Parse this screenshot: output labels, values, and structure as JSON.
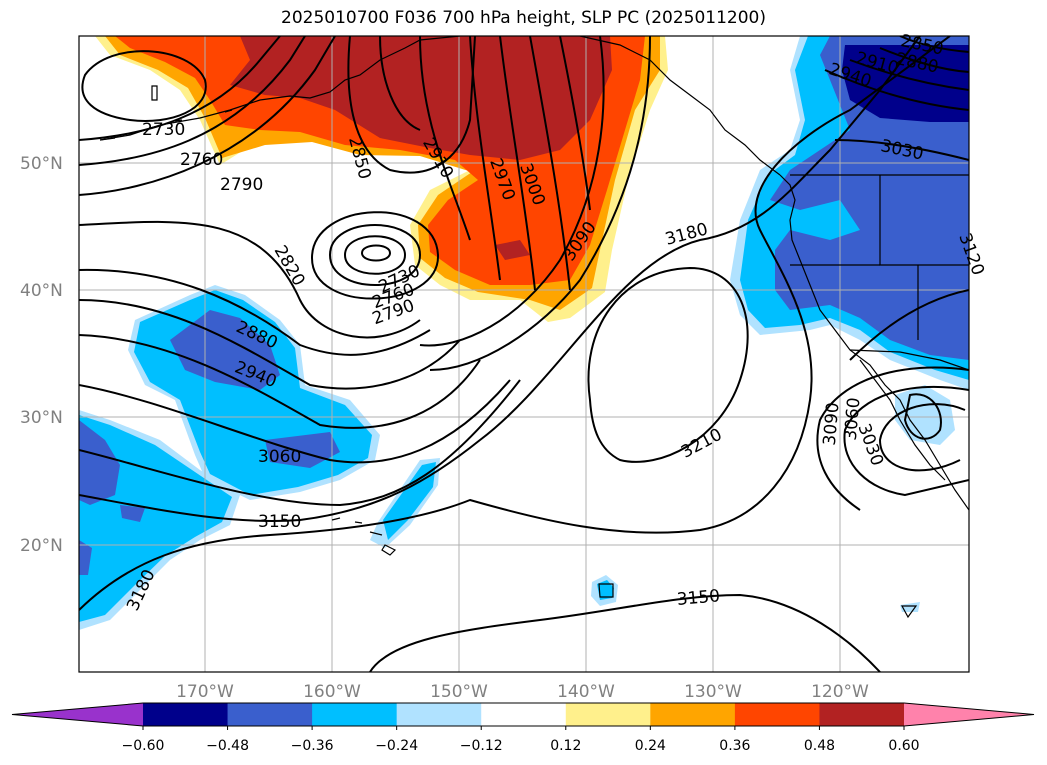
{
  "title": "2025010700 F036 700 hPa height, SLP PC (2025011200)",
  "lat_labels": [
    "50°N",
    "40°N",
    "30°N",
    "20°N"
  ],
  "lon_labels": [
    "170°W",
    "160°W",
    "150°W",
    "140°W",
    "130°W",
    "120°W"
  ],
  "colorbar": {
    "ticks": [
      "−0.60",
      "−0.48",
      "−0.36",
      "−0.24",
      "−0.12",
      "0.12",
      "0.24",
      "0.36",
      "0.48",
      "0.60"
    ],
    "colors": [
      "#9932cc",
      "#00008b",
      "#3a5fcd",
      "#00bfff",
      "#b0e2ff",
      "#ffffff",
      "#fff08c",
      "#ffa500",
      "#ff4500",
      "#b22222",
      "#ff82ab"
    ]
  },
  "contour_labels": [
    "2730",
    "2760",
    "2790",
    "2850",
    "2910",
    "2970",
    "3000",
    "3090",
    "3180",
    "2820",
    "2730",
    "2760",
    "2790",
    "2880",
    "2940",
    "3060",
    "3150",
    "3180",
    "3210",
    "3150",
    "3090",
    "3060",
    "3030",
    "3030",
    "3120",
    "2850",
    "2880",
    "2910",
    "2940"
  ]
}
